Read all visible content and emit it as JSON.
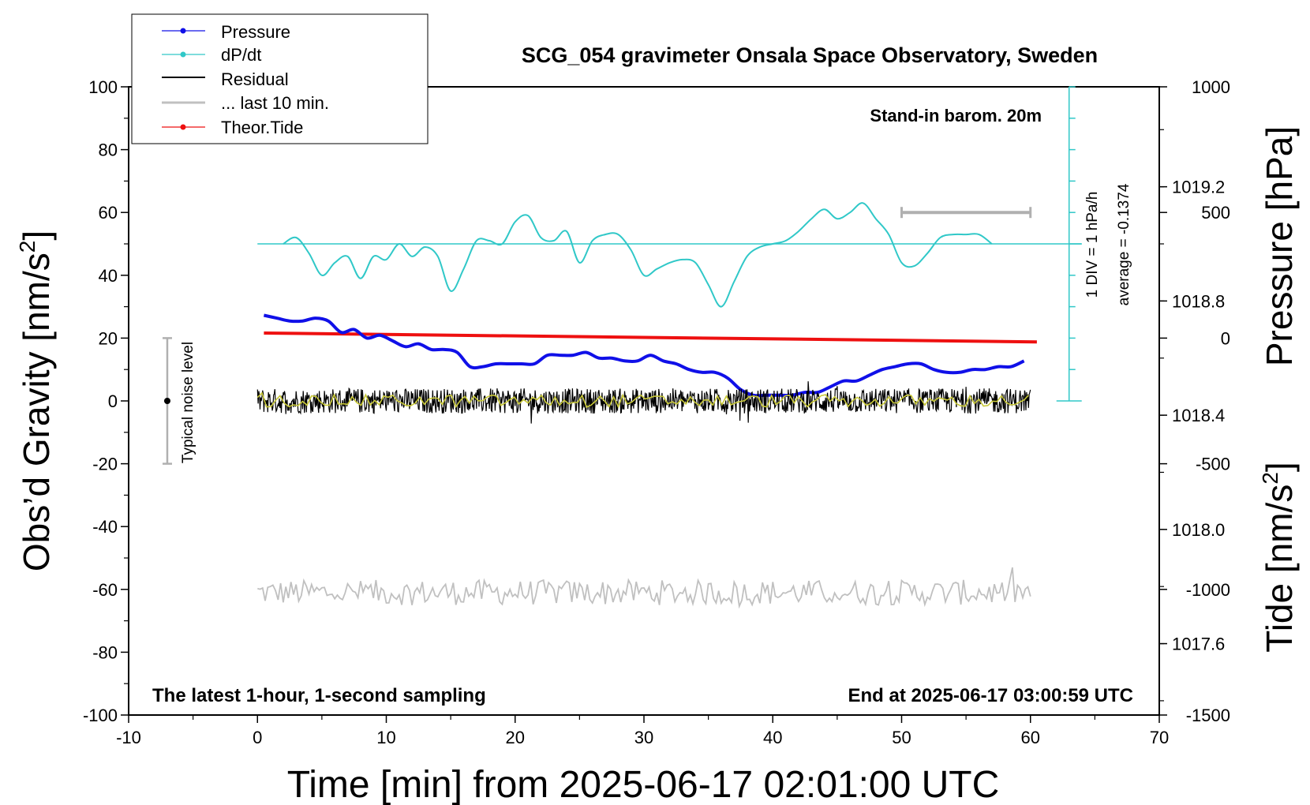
{
  "chart_data": {
    "type": "line",
    "title": "SCG_054 gravimeter Onsala Space Observatory, Sweden",
    "xlabel": "Time [min] from 2025-06-17 02:01:00 UTC",
    "ylabel_left": "Obs’d Gravity [nm/s",
    "ylabel_left_sup": "2",
    "ylabel_left_tail": "]",
    "ylabel_pressure": "Pressure [hPa]",
    "ylabel_tide": "Tide [nm/s",
    "ylabel_tide_sup": "2",
    "ylabel_tide_tail": "]",
    "xlim": [
      -10,
      70
    ],
    "ylim": [
      -100,
      100
    ],
    "pressure_ylim": [
      1017.35,
      1019.55
    ],
    "tide_ylim": [
      -1500,
      1000
    ],
    "dpdt_zero": 50,
    "dpdt_div": 10,
    "x_ticks": [
      "-10",
      "0",
      "10",
      "20",
      "30",
      "40",
      "50",
      "60",
      "70"
    ],
    "y_ticks": [
      "100",
      "80",
      "60",
      "40",
      "20",
      "0",
      "-20",
      "-40",
      "-60",
      "-80",
      "-100"
    ],
    "pressure_ticks": [
      "1019.2",
      "1018.8",
      "1018.4",
      "1018.0",
      "1017.6"
    ],
    "tide_ticks": [
      "1000",
      "500",
      "0",
      "-500",
      "-1000",
      "-1500"
    ],
    "annotations": {
      "barometer": "Stand-in barom. 20m",
      "div": "1 DIV = 1 hPa/h",
      "average": "average = -0.1374",
      "noise": "Typical noise level",
      "sampling": "The latest 1-hour, 1-second sampling",
      "end": "End at 2025-06-17 03:00:59 UTC"
    },
    "legend": {
      "placement": "top-left",
      "entries": [
        "Pressure",
        "dP/dt",
        "Residual",
        "... last 10 min.",
        "Theor.Tide"
      ]
    },
    "colors": {
      "pressure": "#1010e8",
      "dpdt": "#30c8c8",
      "residual": "#000000",
      "last10": "#c8c838",
      "tide": "#ee1010",
      "prev_residual": "#c0c0c0",
      "noise_bar": "#b0b0b0"
    },
    "series": [
      {
        "name": "Pressure",
        "axis": "pressure",
        "x": [
          0.5,
          1.5,
          2.5,
          3.5,
          4.5,
          5.5,
          6.5,
          7.5,
          8.5,
          9.5,
          10.5,
          11.5,
          12.5,
          13.5,
          14.5,
          15.5,
          16.5,
          17.5,
          18.5,
          19.5,
          20.5,
          21.5,
          22.5,
          23.5,
          24.5,
          25.5,
          26.5,
          27.5,
          28.5,
          29.5,
          30.5,
          31.5,
          32.5,
          33.5,
          34.5,
          35.5,
          36.5,
          37.5,
          38.5,
          39.5,
          40.5,
          41.5,
          42.5,
          43.5,
          44.5,
          45.5,
          46.5,
          47.5,
          48.5,
          49.5,
          50.5,
          51.5,
          52.5,
          53.5,
          54.5,
          55.5,
          56.5,
          57.5,
          58.5,
          59.5
        ],
        "y": [
          1018.75,
          1018.74,
          1018.73,
          1018.73,
          1018.74,
          1018.73,
          1018.69,
          1018.7,
          1018.67,
          1018.68,
          1018.66,
          1018.64,
          1018.65,
          1018.63,
          1018.63,
          1018.62,
          1018.57,
          1018.57,
          1018.58,
          1018.58,
          1018.58,
          1018.58,
          1018.61,
          1018.61,
          1018.61,
          1018.62,
          1018.6,
          1018.6,
          1018.59,
          1018.59,
          1018.61,
          1018.59,
          1018.58,
          1018.56,
          1018.55,
          1018.55,
          1018.53,
          1018.49,
          1018.47,
          1018.47,
          1018.47,
          1018.47,
          1018.48,
          1018.48,
          1018.5,
          1018.52,
          1018.52,
          1018.54,
          1018.56,
          1018.57,
          1018.58,
          1018.58,
          1018.56,
          1018.55,
          1018.55,
          1018.56,
          1018.56,
          1018.57,
          1018.57,
          1018.59
        ]
      },
      {
        "name": "dP/dt",
        "axis": "left",
        "x": [
          2.0,
          3.0,
          4.0,
          5.0,
          6.0,
          7.0,
          8.0,
          9.0,
          10.0,
          11.0,
          12.0,
          13.0,
          14.0,
          15.0,
          16.0,
          17.0,
          18.0,
          19.0,
          20.0,
          21.0,
          22.0,
          23.0,
          24.0,
          25.0,
          26.0,
          27.0,
          28.0,
          29.0,
          30.0,
          31.0,
          32.0,
          33.0,
          34.0,
          35.0,
          36.0,
          37.0,
          38.0,
          39.0,
          40.0,
          41.0,
          42.0,
          43.0,
          44.0,
          45.0,
          46.0,
          47.0,
          48.0,
          49.0,
          50.0,
          51.0,
          52.0,
          53.0,
          54.0,
          55.0,
          56.0,
          57.0
        ],
        "y": [
          50,
          52,
          47,
          40,
          44,
          46,
          39,
          46,
          45,
          50,
          46,
          49,
          46,
          35,
          42,
          51,
          51,
          50,
          57,
          59,
          52,
          51,
          54,
          44,
          51,
          53,
          53,
          48,
          40,
          42,
          44,
          45,
          44,
          37,
          30,
          38,
          46,
          49,
          50,
          51,
          54,
          58,
          61,
          58,
          60,
          63,
          58,
          53,
          44,
          43,
          47,
          52,
          53,
          53,
          53,
          50
        ]
      },
      {
        "name": "Residual",
        "axis": "left",
        "x_range": [
          0,
          60
        ],
        "level": 0,
        "spread": 4
      },
      {
        "name": "... last 10 min.",
        "axis": "left",
        "x_range": [
          0,
          60
        ],
        "level": 0,
        "spread": 2
      },
      {
        "name": "Theor.Tide",
        "axis": "tide",
        "x": [
          0.5,
          60.5
        ],
        "y": [
          20,
          -15
        ]
      },
      {
        "axis": "left",
        "x_range": [
          0,
          60
        ],
        "level": -61,
        "spread": 4
      }
    ],
    "noise_bar": {
      "x": -7,
      "ymin": -20,
      "ymax": 20,
      "center": 0
    },
    "scale_bar": {
      "x": [
        50,
        60
      ],
      "tide_y": 500
    }
  }
}
